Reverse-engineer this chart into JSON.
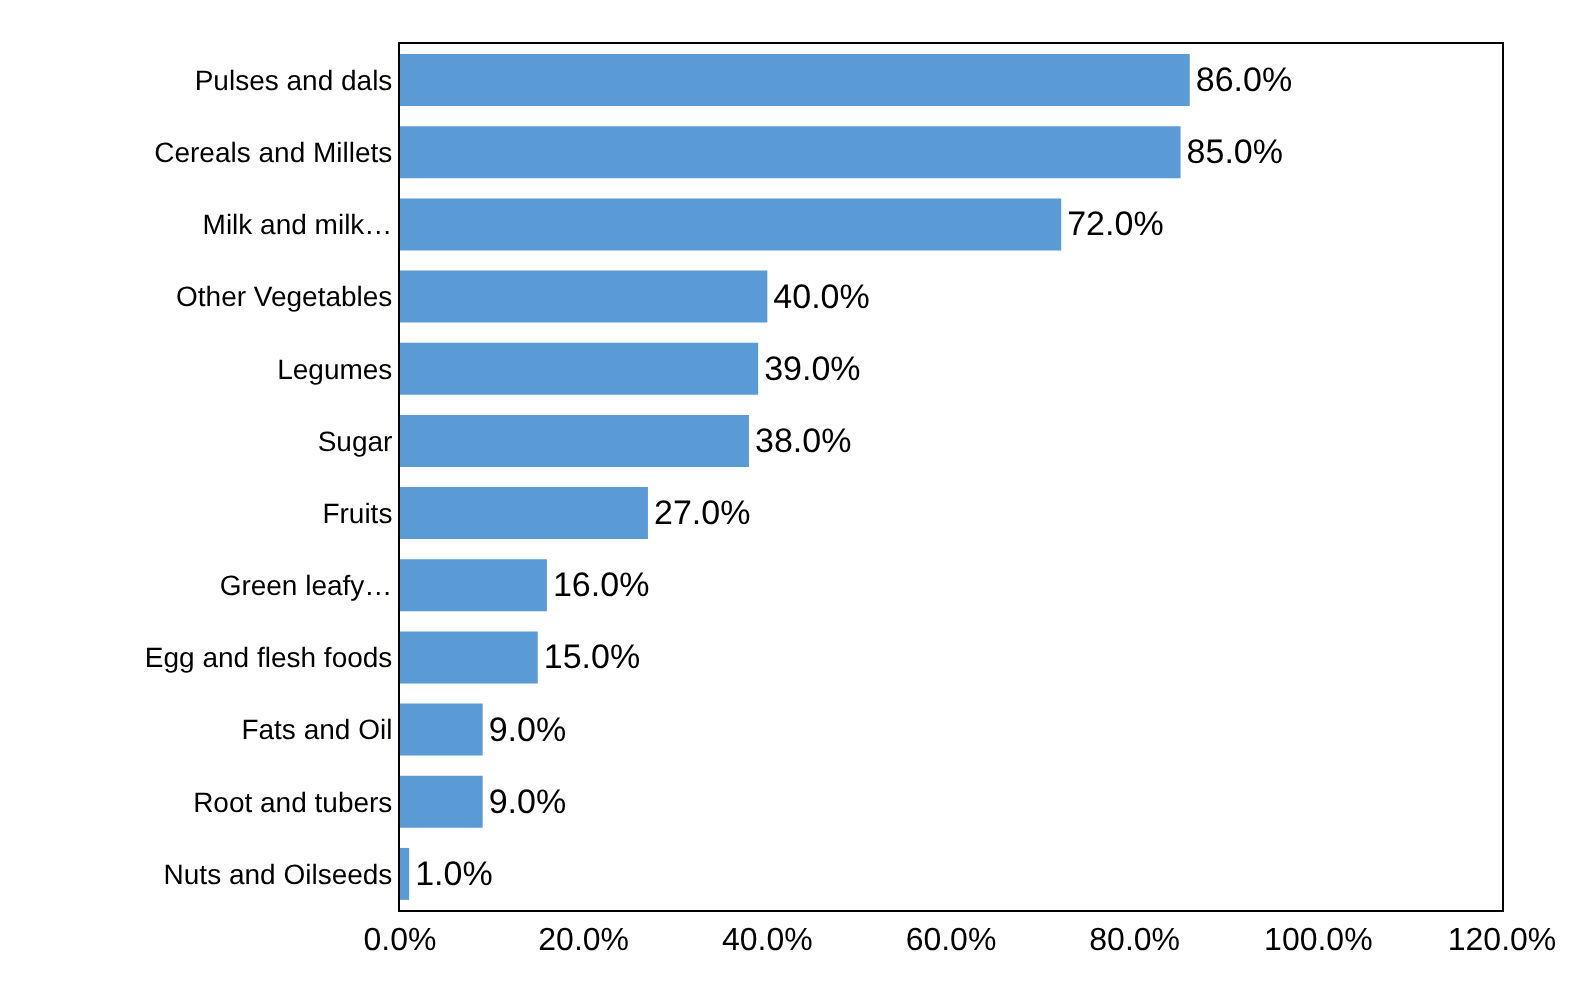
{
  "chart_data": {
    "type": "bar",
    "orientation": "horizontal",
    "categories": [
      "Pulses and dals",
      "Cereals and Millets",
      "Milk and milk…",
      "Other Vegetables",
      "Legumes",
      "Sugar",
      "Fruits",
      "Green leafy…",
      "Egg and flesh foods",
      "Fats and Oil",
      "Root and tubers",
      "Nuts and Oilseeds"
    ],
    "values": [
      86,
      85,
      72,
      40,
      39,
      38,
      27,
      16,
      15,
      9,
      9,
      1
    ],
    "value_labels": [
      "86.0%",
      "85.0%",
      "72.0%",
      "40.0%",
      "39.0%",
      "38.0%",
      "27.0%",
      "16.0%",
      "15.0%",
      "9.0%",
      "9.0%",
      "1.0%"
    ],
    "color": "#5b9bd5",
    "xlim": [
      0,
      120
    ],
    "xticks": [
      {
        "value": 0,
        "label": "0.0%"
      },
      {
        "value": 20,
        "label": "20.0%"
      },
      {
        "value": 40,
        "label": "40.0%"
      },
      {
        "value": 60,
        "label": "60.0%"
      },
      {
        "value": 80,
        "label": "80.0%"
      },
      {
        "value": 100,
        "label": "100.0%"
      },
      {
        "value": 120,
        "label": "120.0%"
      }
    ],
    "legend": false
  }
}
